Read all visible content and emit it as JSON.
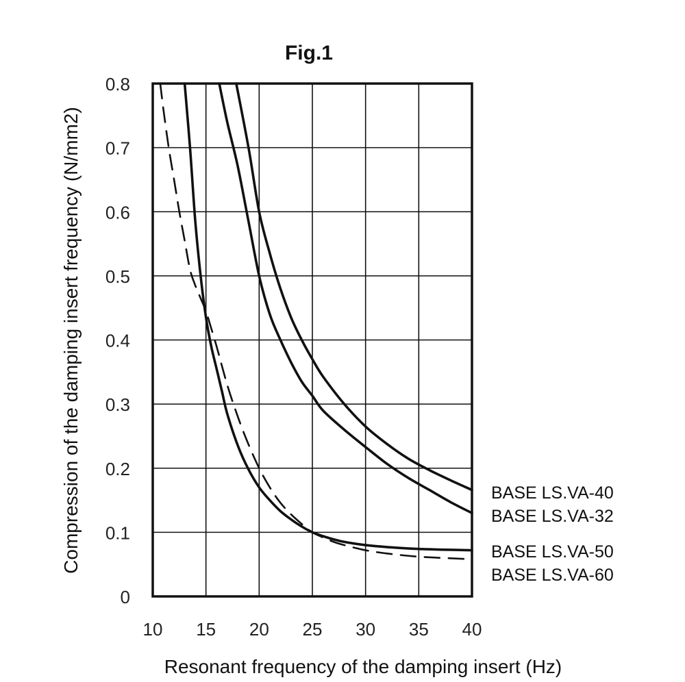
{
  "chart_data": {
    "type": "line",
    "title": "Fig.1",
    "xlabel": "Resonant frequency of the damping insert (Hz)",
    "ylabel": "Compression of the damping insert frequency (N/mm2)",
    "xlim": [
      10,
      40
    ],
    "ylim": [
      0,
      0.8
    ],
    "x_ticks": [
      "10",
      "15",
      "20",
      "25",
      "30",
      "35",
      "40"
    ],
    "y_ticks": [
      "0",
      "0.1",
      "0.2",
      "0.3",
      "0.4",
      "0.5",
      "0.6",
      "0.7",
      "0.8"
    ],
    "grid": true,
    "legend_position": "right",
    "series": [
      {
        "name": "BASE LS.VA-40",
        "dashed": false,
        "x": [
          17.85,
          19.0,
          20.0,
          21.0,
          22.0,
          23.0,
          24.0,
          25.0,
          26.0,
          28.0,
          30.0,
          32.0,
          34.0,
          36.0,
          38.0,
          40.0
        ],
        "y": [
          0.8,
          0.7,
          0.6,
          0.535,
          0.48,
          0.435,
          0.4,
          0.37,
          0.343,
          0.3,
          0.265,
          0.238,
          0.215,
          0.197,
          0.181,
          0.166
        ]
      },
      {
        "name": "BASE LS.VA-32",
        "dashed": false,
        "x": [
          16.25,
          17.0,
          18.0,
          19.0,
          20.0,
          21.0,
          22.0,
          23.0,
          24.0,
          25.0,
          26.0,
          28.0,
          30.0,
          32.0,
          34.0,
          36.0,
          38.0,
          40.0
        ],
        "y": [
          0.8,
          0.74,
          0.67,
          0.585,
          0.5,
          0.44,
          0.4,
          0.365,
          0.335,
          0.313,
          0.29,
          0.26,
          0.233,
          0.207,
          0.185,
          0.166,
          0.147,
          0.13
        ]
      },
      {
        "name": "BASE LS.VA-50",
        "dashed": false,
        "x": [
          13.0,
          13.5,
          14.0,
          14.5,
          15.0,
          15.5,
          16.0,
          16.5,
          17.0,
          18.0,
          19.0,
          20.0,
          21.0,
          22.0,
          23.0,
          24.0,
          25.0,
          26.0,
          27.0,
          28.0,
          30.0,
          32.0,
          35.0,
          40.0
        ],
        "y": [
          0.8,
          0.7,
          0.585,
          0.5,
          0.435,
          0.39,
          0.355,
          0.32,
          0.285,
          0.235,
          0.198,
          0.17,
          0.15,
          0.133,
          0.12,
          0.109,
          0.1,
          0.094,
          0.089,
          0.085,
          0.08,
          0.077,
          0.074,
          0.072
        ]
      },
      {
        "name": "BASE LS.VA-60",
        "dashed": true,
        "x": [
          10.7,
          11.0,
          11.5,
          12.0,
          12.5,
          13.0,
          13.5,
          14.0,
          14.5,
          15.0,
          15.5,
          16.0,
          17.0,
          18.0,
          19.0,
          20.0,
          21.0,
          22.0,
          23.0,
          24.0,
          25.0,
          26.0,
          27.0,
          28.0,
          30.0,
          32.0,
          35.0,
          40.0
        ],
        "y": [
          0.8,
          0.76,
          0.7,
          0.65,
          0.6,
          0.555,
          0.51,
          0.485,
          0.465,
          0.445,
          0.418,
          0.39,
          0.33,
          0.28,
          0.237,
          0.2,
          0.17,
          0.146,
          0.128,
          0.113,
          0.1,
          0.092,
          0.085,
          0.08,
          0.072,
          0.067,
          0.062,
          0.058
        ]
      }
    ]
  }
}
